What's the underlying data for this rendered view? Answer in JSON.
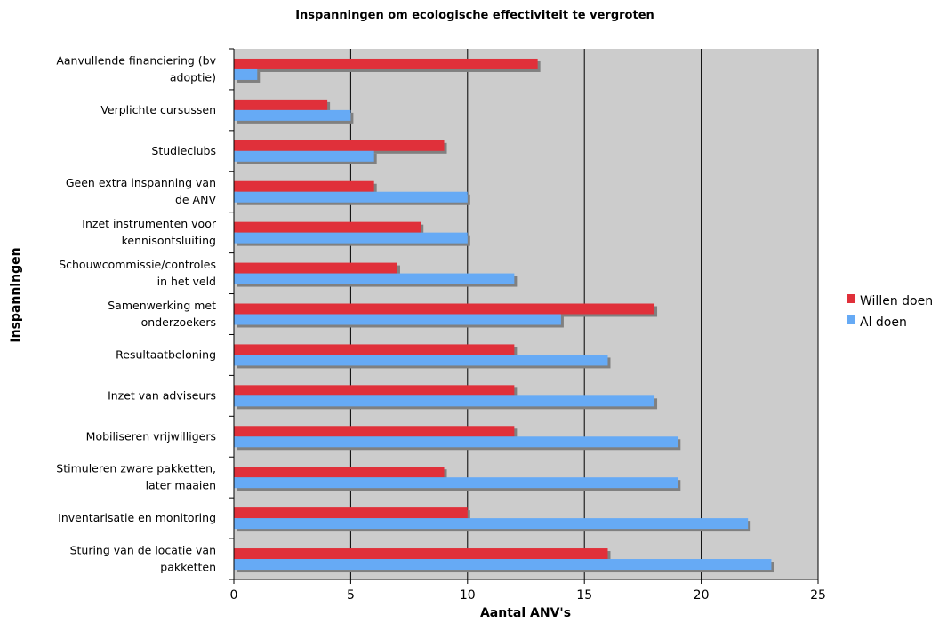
{
  "chart_data": {
    "type": "bar",
    "orientation": "horizontal",
    "title": "Inspanningen om ecologische effectiviteit te vergroten",
    "xlabel": "Aantal ANV's",
    "ylabel": "Inspanningen",
    "xlim": [
      0,
      25
    ],
    "xticks": [
      0,
      5,
      10,
      15,
      20,
      25
    ],
    "grid": "vertical",
    "legend_position": "right",
    "plot_background": "#cccccc",
    "categories": [
      [
        "Aanvullende financiering (bv",
        "adoptie)"
      ],
      [
        "Verplichte cursussen"
      ],
      [
        "Studieclubs"
      ],
      [
        "Geen extra inspanning van",
        "de ANV"
      ],
      [
        "Inzet instrumenten voor",
        "kennisontsluiting"
      ],
      [
        "Schouwcommissie/controles",
        "in het veld"
      ],
      [
        "Samenwerking met",
        "onderzoekers"
      ],
      [
        "Resultaatbeloning"
      ],
      [
        "Inzet van adviseurs"
      ],
      [
        "Mobiliseren vrijwilligers"
      ],
      [
        "Stimuleren zware pakketten,",
        "later maaien"
      ],
      [
        "Inventarisatie en monitoring"
      ],
      [
        "Sturing van de locatie van",
        "pakketten"
      ]
    ],
    "series": [
      {
        "name": "Willen doen",
        "color": "#e0303a",
        "values": [
          13,
          4,
          9,
          6,
          8,
          7,
          18,
          12,
          12,
          12,
          9,
          10,
          16
        ]
      },
      {
        "name": "Al doen",
        "color": "#66aaf5",
        "values": [
          1,
          5,
          6,
          10,
          10,
          12,
          14,
          16,
          18,
          19,
          19,
          22,
          23
        ]
      }
    ]
  }
}
